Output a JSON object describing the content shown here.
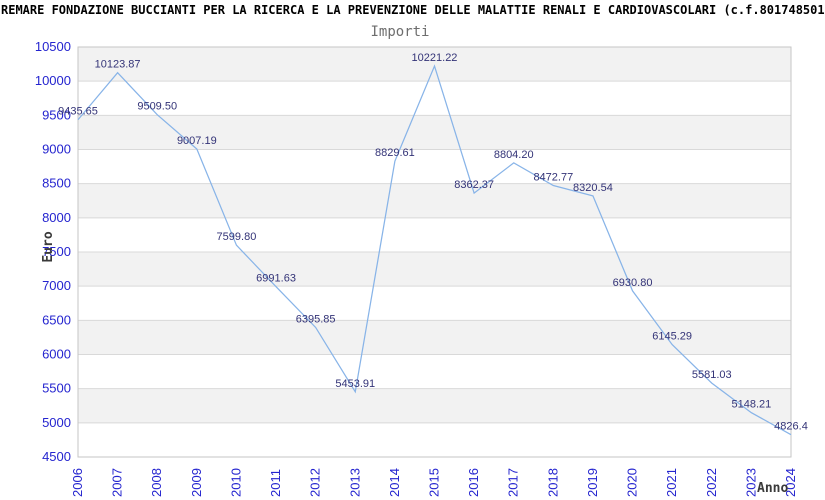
{
  "header": {
    "title": "REMARE FONDAZIONE BUCCIANTI PER LA RICERCA E LA PREVENZIONE DELLE MALATTIE RENALI E CARDIOVASCOLARI (c.f.801748501"
  },
  "chart_data": {
    "type": "line",
    "title": "Importi",
    "xlabel": "Anno",
    "ylabel": "Euro",
    "categories": [
      "2006",
      "2007",
      "2008",
      "2009",
      "2010",
      "2011",
      "2012",
      "2013",
      "2014",
      "2015",
      "2016",
      "2017",
      "2018",
      "2019",
      "2020",
      "2021",
      "2022",
      "2023",
      "2024"
    ],
    "series": [
      {
        "name": "Importi",
        "values": [
          9435.65,
          10123.87,
          9509.5,
          9007.19,
          7599.8,
          6991.63,
          6395.85,
          5453.91,
          8829.61,
          10221.22,
          8362.37,
          8804.2,
          8472.77,
          8320.54,
          6930.8,
          6145.29,
          5581.03,
          5148.21,
          4826.4
        ]
      }
    ],
    "point_labels": [
      "9435.65",
      "10123.87",
      "9509.50",
      "9007.19",
      "7599.80",
      "6991.63",
      "6395.85",
      "5453.91",
      "8829.61",
      "10221.22",
      "8362.37",
      "8804.20",
      "8472.77",
      "8320.54",
      "6930.80",
      "6145.29",
      "5581.03",
      "5148.21",
      "4826.4"
    ],
    "ylim": [
      4500,
      10500
    ],
    "ytick_step": 500,
    "grid": true,
    "legend_position": "none",
    "band_fill_alternate": true,
    "colors": {
      "line": "#88b4e8",
      "tick_label": "#2424cf",
      "point_label": "#333377",
      "band": "#f2f2f2",
      "band_alt": "#ffffff",
      "gridline": "#d9d9d9",
      "plot_border": "#c6c6c6",
      "title": "#000000",
      "subtitle": "#6e6e6e",
      "axis_title": "#3a3a3a"
    }
  }
}
